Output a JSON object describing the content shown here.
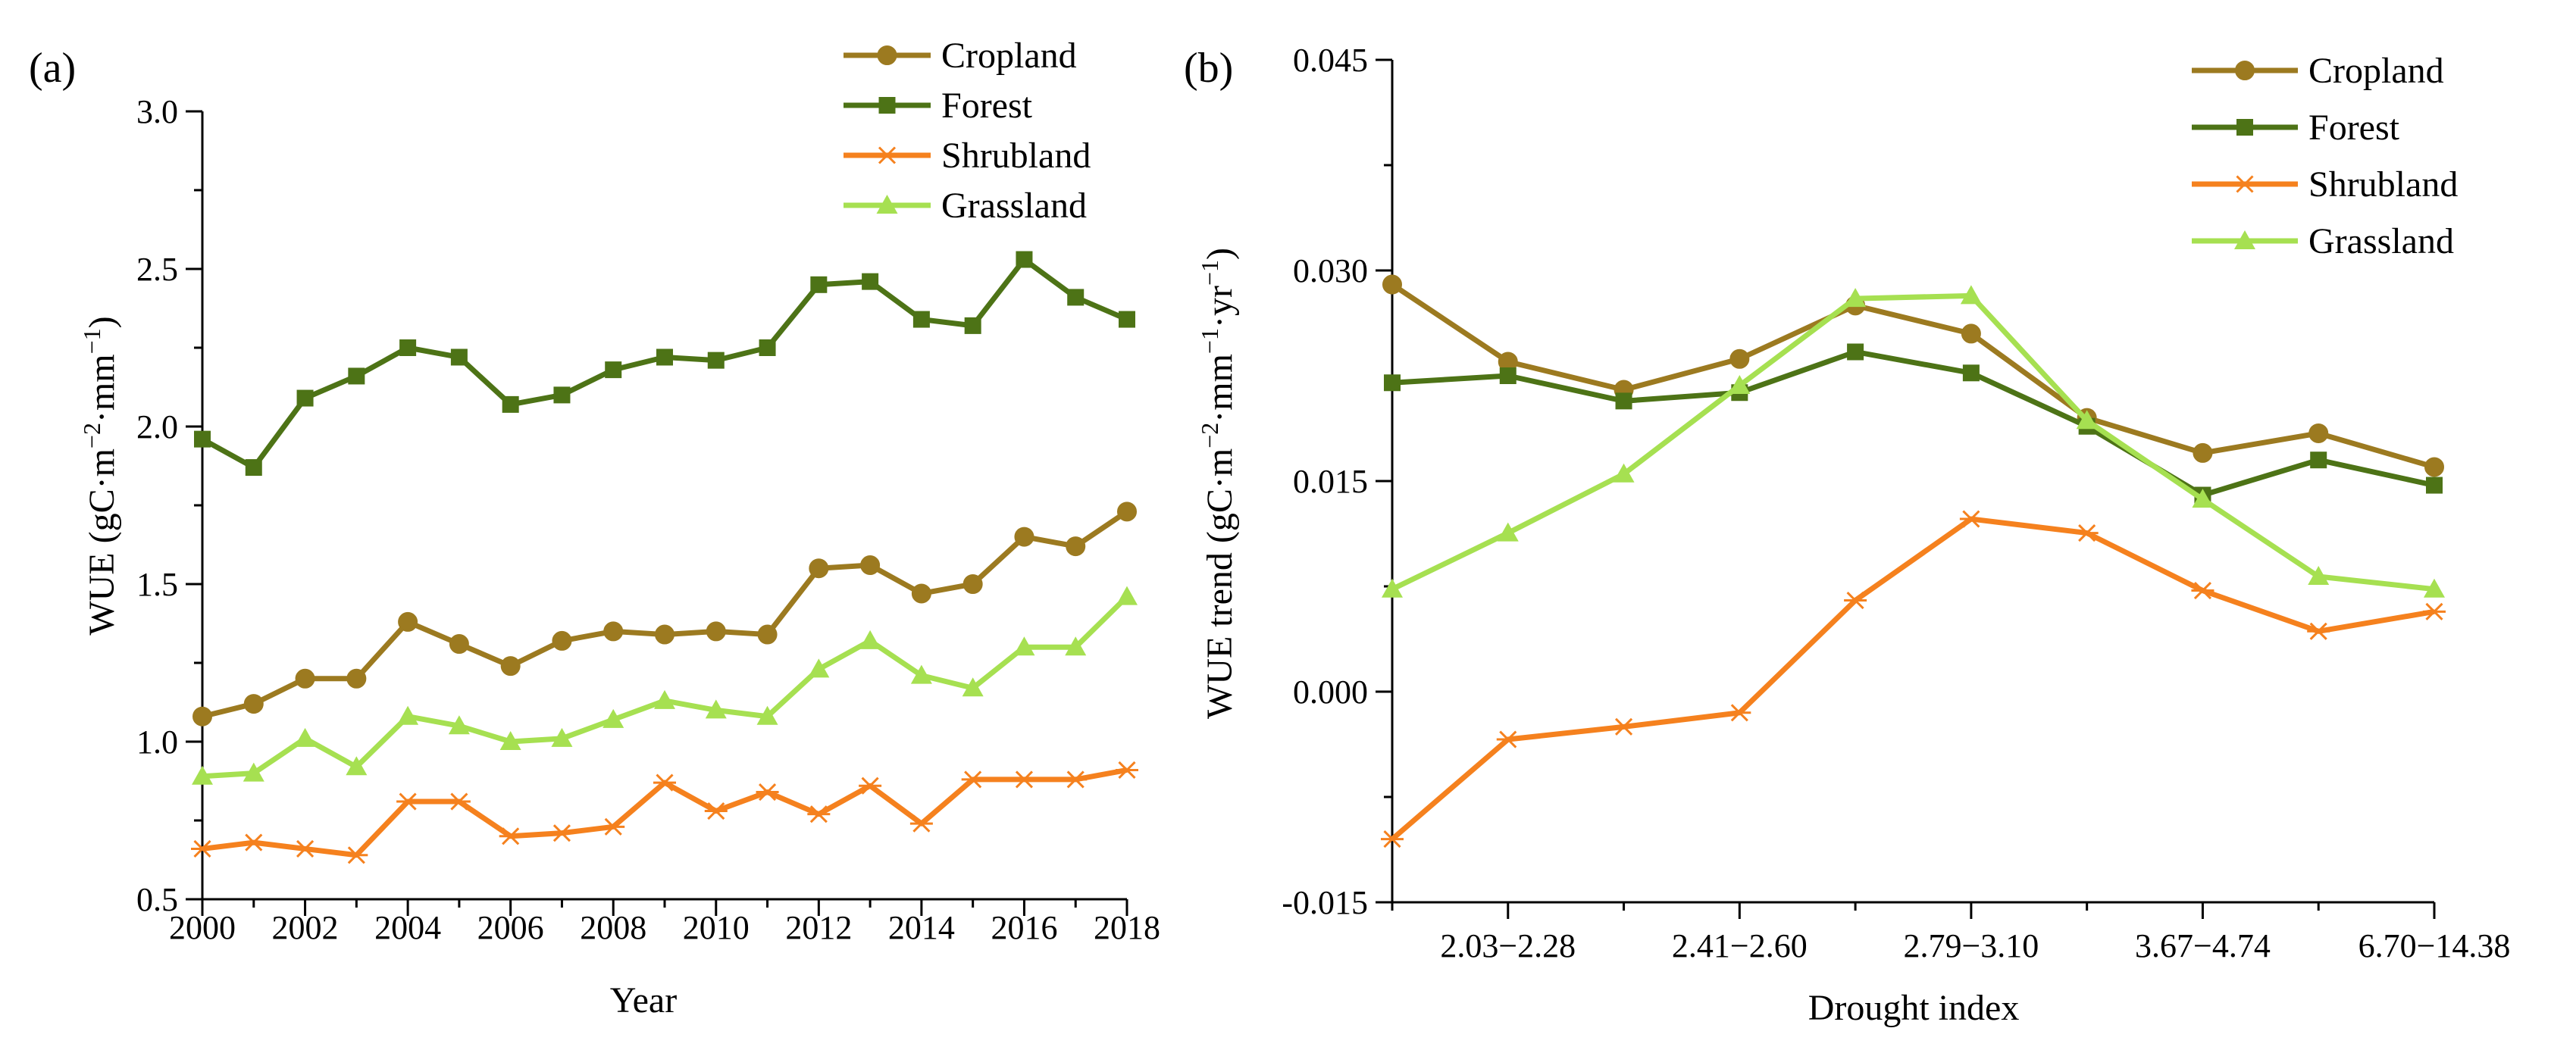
{
  "chart_data": [
    {
      "panel_label": "(a)",
      "type": "line",
      "xlabel": "Year",
      "ylabel": "WUE (gC·m⁻²·mm⁻¹)",
      "ylabel_parts": {
        "base": "WUE (gC·m",
        "sup1": "−2",
        "mid": "·mm",
        "sup2": "−1",
        "end": ")"
      },
      "xlim": [
        2000,
        2018
      ],
      "ylim": [
        0.5,
        3.0
      ],
      "xticks": [
        2000,
        2002,
        2004,
        2006,
        2008,
        2010,
        2012,
        2014,
        2016,
        2018
      ],
      "xtick_labels": [
        "2000",
        "2002",
        "2004",
        "2006",
        "2008",
        "2010",
        "2012",
        "2014",
        "2016",
        "2018"
      ],
      "yticks": [
        0.5,
        1.0,
        1.5,
        2.0,
        2.5,
        3.0
      ],
      "ytick_labels": [
        "0.5",
        "1.0",
        "1.5",
        "2.0",
        "2.5",
        "3.0"
      ],
      "x": [
        2000,
        2001,
        2002,
        2003,
        2004,
        2005,
        2006,
        2007,
        2008,
        2009,
        2010,
        2011,
        2012,
        2013,
        2014,
        2015,
        2016,
        2017,
        2018
      ],
      "legend_position": "top-right",
      "series": [
        {
          "name": "Cropland",
          "color": "#9c7a20",
          "marker": "circle",
          "values": [
            1.08,
            1.12,
            1.2,
            1.2,
            1.38,
            1.31,
            1.24,
            1.32,
            1.35,
            1.34,
            1.35,
            1.34,
            1.55,
            1.56,
            1.47,
            1.5,
            1.65,
            1.62,
            1.73
          ]
        },
        {
          "name": "Forest",
          "color": "#4d7316",
          "marker": "square",
          "values": [
            1.96,
            1.87,
            2.09,
            2.16,
            2.25,
            2.22,
            2.07,
            2.1,
            2.18,
            2.22,
            2.21,
            2.25,
            2.45,
            2.46,
            2.34,
            2.32,
            2.53,
            2.41,
            2.34
          ]
        },
        {
          "name": "Shrubland",
          "color": "#f5811e",
          "marker": "asterisk",
          "values": [
            0.66,
            0.68,
            0.66,
            0.64,
            0.81,
            0.81,
            0.7,
            0.71,
            0.73,
            0.87,
            0.78,
            0.84,
            0.77,
            0.86,
            0.74,
            0.88,
            0.88,
            0.88,
            0.91
          ]
        },
        {
          "name": "Grassland",
          "color": "#a6e051",
          "marker": "triangle",
          "values": [
            0.89,
            0.9,
            1.01,
            0.92,
            1.08,
            1.05,
            1.0,
            1.01,
            1.07,
            1.13,
            1.1,
            1.08,
            1.23,
            1.32,
            1.21,
            1.17,
            1.3,
            1.3,
            1.46
          ]
        }
      ]
    },
    {
      "panel_label": "(b)",
      "type": "line",
      "xlabel": "Drought index",
      "ylabel": "WUE trend (gC·m⁻²·mm⁻¹·yr⁻¹)",
      "ylabel_parts": {
        "base": "WUE trend (gC·m",
        "sup1": "−2",
        "mid": "·mm",
        "sup2": "−1",
        "mid2": "·yr",
        "sup3": "−1",
        "end": ")"
      },
      "categories": [
        "",
        "2.03−2.28",
        "",
        "2.41−2.60",
        "",
        "2.79−3.10",
        "",
        "3.67−4.74",
        "",
        "6.70−14.38"
      ],
      "ylim": [
        -0.015,
        0.045
      ],
      "yticks": [
        -0.015,
        0.0,
        0.015,
        0.03,
        0.045
      ],
      "ytick_labels": [
        "-0.015",
        "0.000",
        "0.015",
        "0.030",
        "0.045"
      ],
      "legend_position": "top-right",
      "series": [
        {
          "name": "Cropland",
          "color": "#9c7a20",
          "marker": "circle",
          "values": [
            0.029,
            0.0235,
            0.0215,
            0.0237,
            0.0275,
            0.0255,
            0.0195,
            0.017,
            0.0184,
            0.016
          ]
        },
        {
          "name": "Forest",
          "color": "#4d7316",
          "marker": "square",
          "values": [
            0.022,
            0.0225,
            0.0207,
            0.0213,
            0.0242,
            0.0227,
            0.0189,
            0.014,
            0.0165,
            0.0147
          ]
        },
        {
          "name": "Shrubland",
          "color": "#f5811e",
          "marker": "asterisk",
          "values": [
            -0.0105,
            -0.0034,
            -0.0025,
            -0.0015,
            0.0065,
            0.0123,
            0.0113,
            0.0072,
            0.0043,
            0.0057
          ]
        },
        {
          "name": "Grassland",
          "color": "#a6e051",
          "marker": "triangle",
          "values": [
            0.0073,
            0.0113,
            0.0155,
            0.0218,
            0.028,
            0.0282,
            0.0193,
            0.0137,
            0.0082,
            0.0073
          ]
        }
      ]
    }
  ]
}
